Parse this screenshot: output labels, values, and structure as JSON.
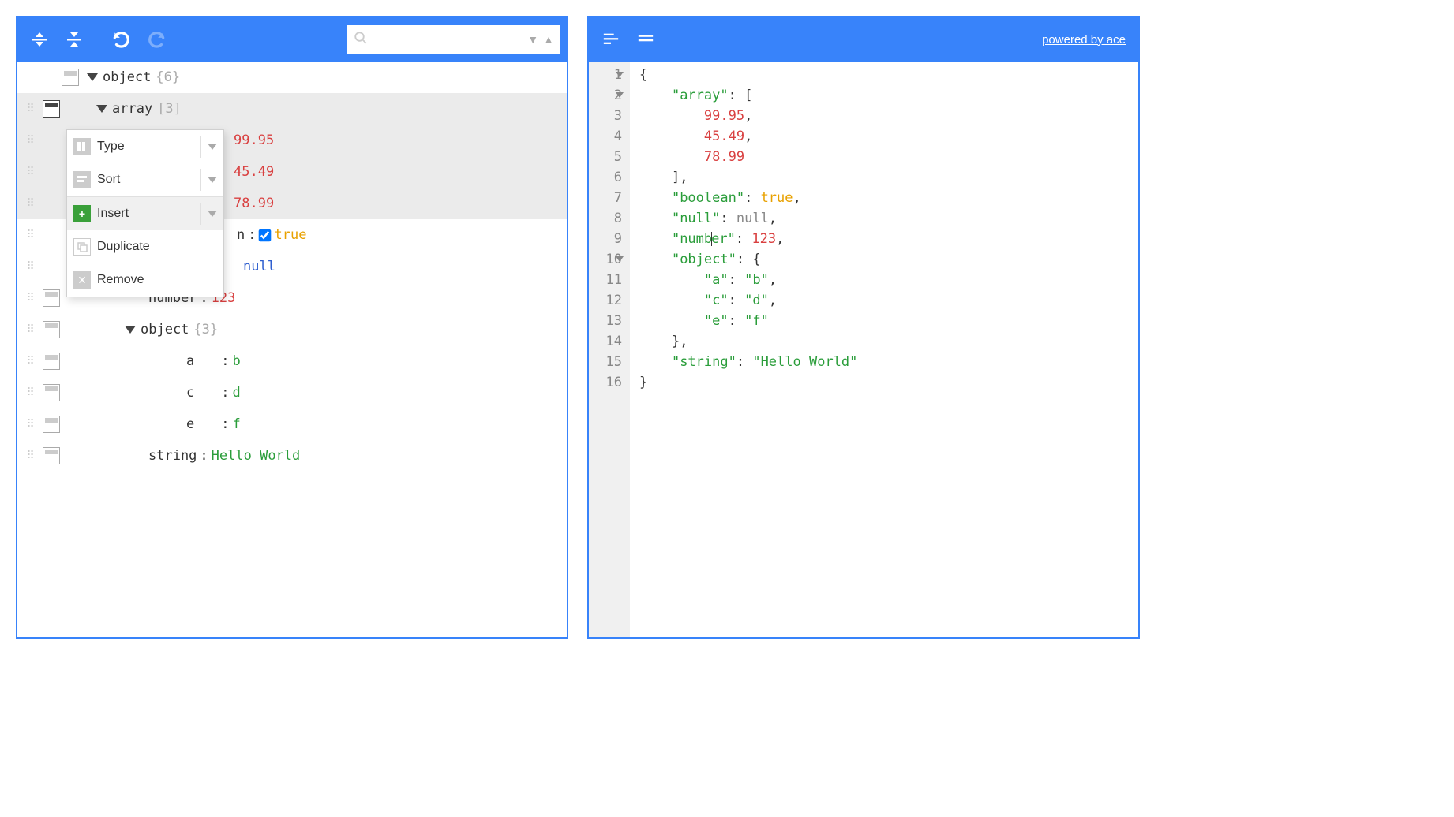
{
  "colors": {
    "accent": "#3883fa",
    "highlight_row": "#ebebeb",
    "code_highlight": "#fff7c0",
    "gutter_bg": "#f0f0f0",
    "val_number": "#d94040",
    "val_boolean": "#e8a100",
    "val_null": "#3060d0",
    "val_string": "#2a9d3a",
    "count": "#aaaaaa"
  },
  "left_toolbar": {
    "expand_all_title": "Expand all",
    "collapse_all_title": "Collapse all",
    "undo_title": "Undo",
    "redo_title": "Redo",
    "redo_disabled": true,
    "search_placeholder": ""
  },
  "right_toolbar": {
    "format_title": "Format",
    "compact_title": "Compact",
    "powered_label": "powered by ace"
  },
  "tree": {
    "root": {
      "key": "object",
      "count": "{6}"
    },
    "array_row": {
      "key": "array",
      "count": "[3]"
    },
    "array_items": [
      "99.95",
      "45.49",
      "78.99"
    ],
    "boolean_row": {
      "key_visible": "n",
      "value": "true",
      "checked": true
    },
    "null_row": {
      "value": "null"
    },
    "number_row": {
      "key": "number",
      "value": "123"
    },
    "object_row": {
      "key": "object",
      "count": "{3}"
    },
    "object_items": [
      {
        "key": "a",
        "value": "b"
      },
      {
        "key": "c",
        "value": "d"
      },
      {
        "key": "e",
        "value": "f"
      }
    ],
    "string_row": {
      "key": "string",
      "value": "Hello World"
    }
  },
  "context_menu": {
    "type": "Type",
    "sort": "Sort",
    "insert": "Insert",
    "duplicate": "Duplicate",
    "remove": "Remove"
  },
  "code": {
    "highlighted_line": 9,
    "fold_lines": [
      1,
      2,
      10
    ],
    "lines": [
      [
        {
          "t": "punc",
          "v": "{"
        }
      ],
      [
        {
          "t": "ind",
          "v": "    "
        },
        {
          "t": "key",
          "v": "\"array\""
        },
        {
          "t": "punc",
          "v": ": ["
        }
      ],
      [
        {
          "t": "ind",
          "v": "        "
        },
        {
          "t": "num",
          "v": "99.95"
        },
        {
          "t": "punc",
          "v": ","
        }
      ],
      [
        {
          "t": "ind",
          "v": "        "
        },
        {
          "t": "num",
          "v": "45.49"
        },
        {
          "t": "punc",
          "v": ","
        }
      ],
      [
        {
          "t": "ind",
          "v": "        "
        },
        {
          "t": "num",
          "v": "78.99"
        }
      ],
      [
        {
          "t": "ind",
          "v": "    "
        },
        {
          "t": "punc",
          "v": "],"
        }
      ],
      [
        {
          "t": "ind",
          "v": "    "
        },
        {
          "t": "key",
          "v": "\"boolean\""
        },
        {
          "t": "punc",
          "v": ": "
        },
        {
          "t": "bool",
          "v": "true"
        },
        {
          "t": "punc",
          "v": ","
        }
      ],
      [
        {
          "t": "ind",
          "v": "    "
        },
        {
          "t": "key",
          "v": "\"null\""
        },
        {
          "t": "punc",
          "v": ": "
        },
        {
          "t": "null",
          "v": "null"
        },
        {
          "t": "punc",
          "v": ","
        }
      ],
      [
        {
          "t": "ind",
          "v": "    "
        },
        {
          "t": "key",
          "v": "\"numb"
        },
        {
          "t": "cursor",
          "v": ""
        },
        {
          "t": "key",
          "v": "er\""
        },
        {
          "t": "punc",
          "v": ": "
        },
        {
          "t": "num",
          "v": "123"
        },
        {
          "t": "punc",
          "v": ","
        }
      ],
      [
        {
          "t": "ind",
          "v": "    "
        },
        {
          "t": "key",
          "v": "\"object\""
        },
        {
          "t": "punc",
          "v": ": {"
        }
      ],
      [
        {
          "t": "ind",
          "v": "        "
        },
        {
          "t": "key",
          "v": "\"a\""
        },
        {
          "t": "punc",
          "v": ": "
        },
        {
          "t": "str",
          "v": "\"b\""
        },
        {
          "t": "punc",
          "v": ","
        }
      ],
      [
        {
          "t": "ind",
          "v": "        "
        },
        {
          "t": "key",
          "v": "\"c\""
        },
        {
          "t": "punc",
          "v": ": "
        },
        {
          "t": "str",
          "v": "\"d\""
        },
        {
          "t": "punc",
          "v": ","
        }
      ],
      [
        {
          "t": "ind",
          "v": "        "
        },
        {
          "t": "key",
          "v": "\"e\""
        },
        {
          "t": "punc",
          "v": ": "
        },
        {
          "t": "str",
          "v": "\"f\""
        }
      ],
      [
        {
          "t": "ind",
          "v": "    "
        },
        {
          "t": "punc",
          "v": "},"
        }
      ],
      [
        {
          "t": "ind",
          "v": "    "
        },
        {
          "t": "key",
          "v": "\"string\""
        },
        {
          "t": "punc",
          "v": ": "
        },
        {
          "t": "str",
          "v": "\"Hello World\""
        }
      ],
      [
        {
          "t": "punc",
          "v": "}"
        }
      ]
    ]
  }
}
